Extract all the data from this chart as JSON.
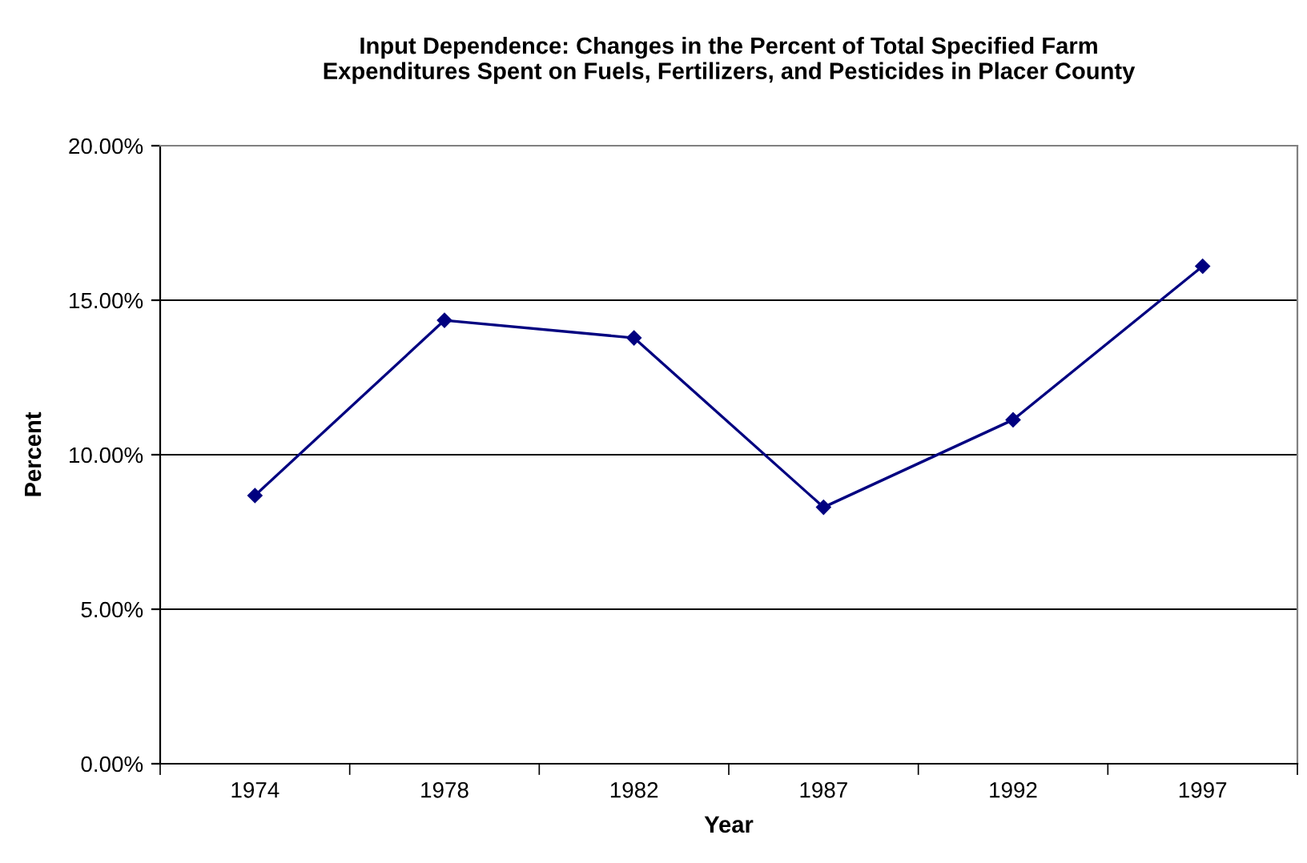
{
  "chart_data": {
    "type": "line",
    "title": "Input Dependence: Changes in the Percent of Total Specified Farm\nExpenditures Spent on Fuels, Fertilizers, and Pesticides in Placer County",
    "xlabel": "Year",
    "ylabel": "Percent",
    "categories": [
      "1974",
      "1978",
      "1982",
      "1987",
      "1992",
      "1997"
    ],
    "series": [
      {
        "color": "#000080",
        "values": [
          8.68,
          14.35,
          13.78,
          8.3,
          11.13,
          16.1
        ]
      }
    ],
    "ylim": [
      0,
      20
    ],
    "yticks": [
      {
        "value": 0,
        "label": "0.00%"
      },
      {
        "value": 5,
        "label": "5.00%"
      },
      {
        "value": 10,
        "label": "10.00%"
      },
      {
        "value": 15,
        "label": "15.00%"
      },
      {
        "value": 20,
        "label": "20.00%"
      }
    ],
    "grid": "y",
    "marker": "diamond",
    "line_style": "solid"
  }
}
